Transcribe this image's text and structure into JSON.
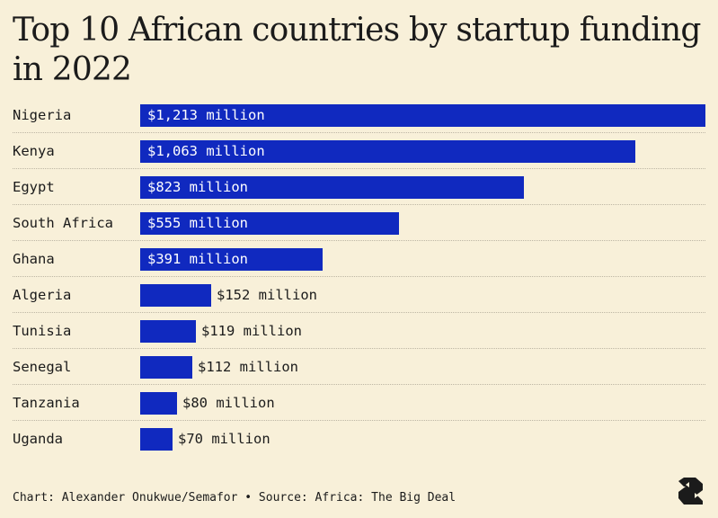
{
  "title": "Top 10 African countries by startup funding in 2022",
  "footer": "Chart: Alexander Onukwue/Semafor • Source: Africa: The Big Deal",
  "logo": {
    "text": "S",
    "icon": "semafor-logo"
  },
  "colors": {
    "background": "#f8f0d9",
    "bar": "#1029bf",
    "text": "#1b1b1b",
    "inside_label": "#ffffff"
  },
  "chart_data": {
    "type": "bar",
    "orientation": "horizontal",
    "title": "Top 10 African countries by startup funding in 2022",
    "categories": [
      "Nigeria",
      "Kenya",
      "Egypt",
      "South Africa",
      "Ghana",
      "Algeria",
      "Tunisia",
      "Senegal",
      "Tanzania",
      "Uganda"
    ],
    "values": [
      1213,
      1063,
      823,
      555,
      391,
      152,
      119,
      112,
      80,
      70
    ],
    "value_labels": [
      "$1,213 million",
      "$1,063 million",
      "$823 million",
      "$555 million",
      "$391 million",
      "$152 million",
      "$119 million",
      "$112 million",
      "$80 million",
      "$70 million"
    ],
    "unit": "million",
    "xlim": [
      0,
      1213
    ],
    "grid": false,
    "legend": "none"
  }
}
